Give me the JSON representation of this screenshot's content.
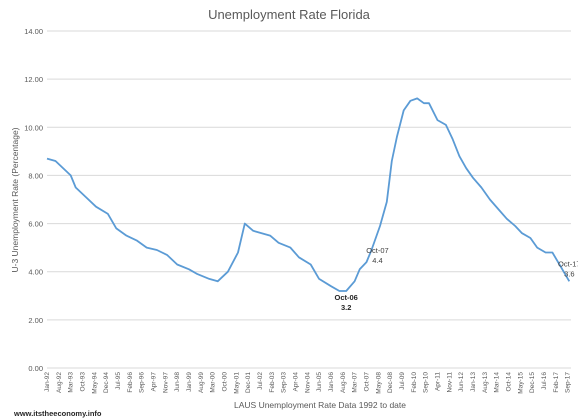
{
  "chart_data": {
    "type": "line",
    "title": "Unemployment Rate Florida",
    "xlabel": "LAUS Unemployment Rate Data 1992 to date",
    "ylabel": "U-3 Unemployment Rate (Percentage)",
    "ylim": [
      0,
      14
    ],
    "y_ticks": [
      "0.00",
      "2.00",
      "4.00",
      "6.00",
      "8.00",
      "10.00",
      "12.00",
      "14.00"
    ],
    "x_ticks": [
      "Jan-92",
      "Aug-92",
      "Mar-93",
      "Oct-93",
      "May-94",
      "Dec-94",
      "Jul-95",
      "Feb-96",
      "Sep-96",
      "Apr-97",
      "Nov-97",
      "Jun-98",
      "Jan-99",
      "Aug-99",
      "Mar-00",
      "Oct-00",
      "May-01",
      "Dec-01",
      "Jul-02",
      "Feb-03",
      "Sep-03",
      "Apr-04",
      "Nov-04",
      "Jun-05",
      "Jan-06",
      "Aug-06",
      "Mar-07",
      "Oct-07",
      "May-08",
      "Dec-08",
      "Jul-09",
      "Feb-10",
      "Sep-10",
      "Apr-11",
      "Nov-11",
      "Jun-12",
      "Jan-13",
      "Aug-13",
      "Mar-14",
      "Oct-14",
      "May-15",
      "Dec-15",
      "Jul-16",
      "Feb-17",
      "Sep-17"
    ],
    "grid": true,
    "legend": "none",
    "line_color": "#5b9bd5",
    "series": [
      {
        "x": [
          "1992-01",
          "1992-06",
          "1993-03",
          "1993-06",
          "1993-12",
          "1994-06",
          "1995-01",
          "1995-06",
          "1995-12",
          "1996-06",
          "1996-12",
          "1997-06",
          "1997-12",
          "1998-06",
          "1999-01",
          "1999-06",
          "2000-01",
          "2000-06",
          "2000-12",
          "2001-06",
          "2001-10",
          "2002-03",
          "2002-08",
          "2003-01",
          "2003-06",
          "2004-01",
          "2004-06",
          "2005-01",
          "2005-06",
          "2006-01",
          "2006-06",
          "2006-10",
          "2007-03",
          "2007-06",
          "2007-10",
          "2008-01",
          "2008-06",
          "2008-10",
          "2009-01",
          "2009-04",
          "2009-08",
          "2009-12",
          "2010-04",
          "2010-08",
          "2010-11",
          "2011-04",
          "2011-09",
          "2012-01",
          "2012-05",
          "2012-09",
          "2013-01",
          "2013-06",
          "2013-11",
          "2014-04",
          "2014-09",
          "2015-02",
          "2015-06",
          "2015-11",
          "2016-03",
          "2016-08",
          "2016-12",
          "2017-05",
          "2017-10"
        ],
        "y": [
          8.7,
          8.6,
          8.0,
          7.5,
          7.1,
          6.7,
          6.4,
          5.8,
          5.5,
          5.3,
          5.0,
          4.9,
          4.7,
          4.3,
          4.1,
          3.9,
          3.7,
          3.6,
          4.0,
          4.8,
          6.0,
          5.7,
          5.6,
          5.5,
          5.2,
          5.0,
          4.6,
          4.3,
          3.7,
          3.4,
          3.2,
          3.2,
          3.6,
          4.1,
          4.4,
          4.9,
          5.9,
          6.9,
          8.6,
          9.6,
          10.7,
          11.1,
          11.2,
          11.0,
          11.0,
          10.3,
          10.1,
          9.5,
          8.8,
          8.3,
          7.9,
          7.5,
          7.0,
          6.6,
          6.2,
          5.9,
          5.6,
          5.4,
          5.0,
          4.8,
          4.8,
          4.2,
          3.6
        ]
      }
    ],
    "annotations": [
      {
        "x": "2006-10",
        "y": 3.2,
        "date": "Oct-06",
        "value": "3.2"
      },
      {
        "x": "2007-10",
        "y": 4.4,
        "date": "Oct-07",
        "value": "4.4"
      },
      {
        "x": "2017-10",
        "y": 3.6,
        "date": "Oct-17",
        "value": "3.6"
      }
    ]
  },
  "credit": "www.itstheeconomy.info"
}
